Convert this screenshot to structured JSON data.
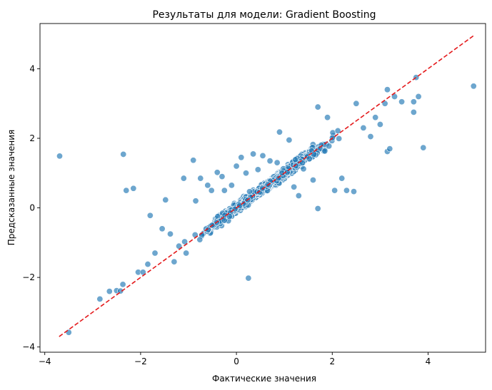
{
  "chart_data": {
    "type": "scatter",
    "title": "Результаты для модели: Gradient Boosting",
    "xlabel": "Фактические значения",
    "ylabel": "Предсказанные значения",
    "xlim": [
      -4.1,
      5.2
    ],
    "ylim": [
      -4.15,
      5.3
    ],
    "xticks": [
      -4,
      -2,
      0,
      2,
      4
    ],
    "yticks": [
      -4,
      -2,
      0,
      2,
      4
    ],
    "xtick_labels": [
      "−4",
      "−2",
      "0",
      "2",
      "4"
    ],
    "ytick_labels": [
      "−4",
      "−2",
      "0",
      "2",
      "4"
    ],
    "grid": false,
    "point_color": "#1f77b4",
    "point_edge_color": "#ffffff",
    "point_alpha": 0.65,
    "reference_line": {
      "x": [
        -3.7,
        4.95
      ],
      "y": [
        -3.7,
        4.95
      ],
      "color": "#e41a1c",
      "style": "dashed"
    },
    "approx_point_count": 1000,
    "points": [
      [
        -3.69,
        1.49
      ],
      [
        -3.5,
        -3.58
      ],
      [
        -2.85,
        -2.62
      ],
      [
        -2.65,
        -2.4
      ],
      [
        -2.5,
        -2.38
      ],
      [
        -2.42,
        -2.39
      ],
      [
        -2.37,
        -2.2
      ],
      [
        -2.36,
        1.54
      ],
      [
        -2.3,
        0.5
      ],
      [
        -2.15,
        0.56
      ],
      [
        -2.05,
        -1.85
      ],
      [
        -1.95,
        -1.85
      ],
      [
        -1.85,
        -1.62
      ],
      [
        -1.8,
        -0.22
      ],
      [
        -1.7,
        -1.3
      ],
      [
        -1.55,
        -0.6
      ],
      [
        -1.48,
        0.23
      ],
      [
        -1.38,
        -0.75
      ],
      [
        -1.3,
        -1.55
      ],
      [
        -1.2,
        -1.1
      ],
      [
        -1.1,
        0.85
      ],
      [
        -1.05,
        -1.3
      ],
      [
        -0.9,
        1.37
      ],
      [
        -0.85,
        0.2
      ],
      [
        -0.75,
        0.85
      ],
      [
        -0.6,
        0.65
      ],
      [
        -0.52,
        0.5
      ],
      [
        -0.4,
        1.02
      ],
      [
        -0.3,
        0.9
      ],
      [
        -0.25,
        0.5
      ],
      [
        -0.1,
        0.65
      ],
      [
        0.0,
        1.2
      ],
      [
        0.1,
        1.45
      ],
      [
        0.2,
        1.0
      ],
      [
        0.25,
        -2.02
      ],
      [
        0.35,
        1.55
      ],
      [
        0.45,
        1.1
      ],
      [
        0.55,
        1.5
      ],
      [
        0.7,
        1.35
      ],
      [
        0.85,
        1.3
      ],
      [
        0.9,
        2.18
      ],
      [
        1.1,
        1.95
      ],
      [
        1.2,
        0.6
      ],
      [
        1.3,
        0.35
      ],
      [
        1.4,
        1.12
      ],
      [
        1.6,
        0.8
      ],
      [
        1.7,
        -0.02
      ],
      [
        1.7,
        2.9
      ],
      [
        1.9,
        2.6
      ],
      [
        2.05,
        0.5
      ],
      [
        2.2,
        0.85
      ],
      [
        2.3,
        0.5
      ],
      [
        2.45,
        0.47
      ],
      [
        2.5,
        3.0
      ],
      [
        2.65,
        2.3
      ],
      [
        2.8,
        2.05
      ],
      [
        2.9,
        2.6
      ],
      [
        3.0,
        2.4
      ],
      [
        3.1,
        3.0
      ],
      [
        3.15,
        1.62
      ],
      [
        3.2,
        1.7
      ],
      [
        3.3,
        3.2
      ],
      [
        3.45,
        3.05
      ],
      [
        3.7,
        3.05
      ],
      [
        3.75,
        3.75
      ],
      [
        3.8,
        3.2
      ],
      [
        3.9,
        1.73
      ],
      [
        4.95,
        3.5
      ],
      [
        3.15,
        3.4
      ],
      [
        3.7,
        2.75
      ]
    ]
  }
}
